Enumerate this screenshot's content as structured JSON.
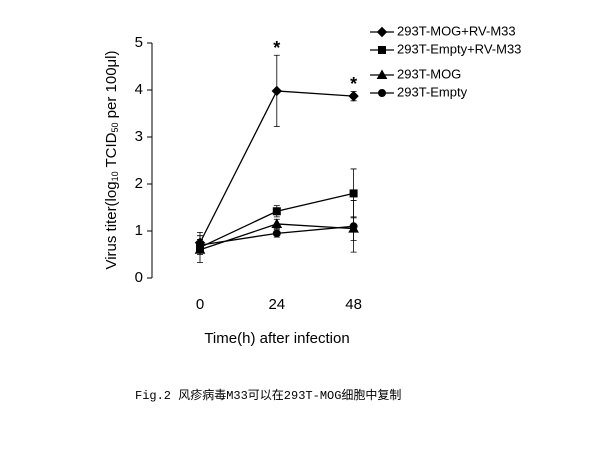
{
  "chart_data": {
    "type": "line",
    "xlabel": "Time(h) after infection",
    "ylabel": [
      "Virus titer(log",
      "10",
      " TCID",
      "50",
      " per 100μl)"
    ],
    "x": [
      0,
      24,
      48
    ],
    "xlim": [
      -15,
      55
    ],
    "xticks": [
      0,
      24,
      48
    ],
    "ylim": [
      0,
      5
    ],
    "yticks": [
      0,
      1,
      2,
      3,
      4,
      5
    ],
    "series": [
      {
        "name": "293T-MOG+RV-M33",
        "color": "#000000",
        "marker": "diamond",
        "values": [
          0.75,
          3.98,
          3.87
        ],
        "errors": [
          0.15,
          0.76,
          0.1
        ]
      },
      {
        "name": "293T-Empty+RV-M33",
        "color": "#000000",
        "marker": "square",
        "values": [
          0.65,
          1.42,
          1.8
        ],
        "errors": [
          0.32,
          0.12,
          0.52
        ]
      },
      {
        "name": "293T-MOG",
        "color": "#000000",
        "marker": "triangle",
        "values": [
          0.6,
          1.15,
          1.05
        ],
        "errors": [
          0.1,
          0.1,
          0.25
        ]
      },
      {
        "name": "293T-Empty",
        "color": "#000000",
        "marker": "circle",
        "values": [
          0.7,
          0.95,
          1.1
        ],
        "errors": [
          0.12,
          0.08,
          0.55
        ]
      }
    ],
    "annotations": [
      {
        "text": "*",
        "x": 24
      },
      {
        "text": "*",
        "x": 48
      }
    ],
    "legend": "top-right",
    "caption": "Fig.2 风疹病毒M33可以在293T-MOG细胞中复制"
  }
}
